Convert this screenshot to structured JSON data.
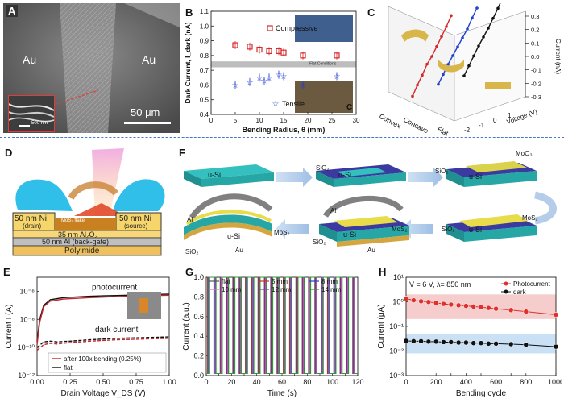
{
  "figure": {
    "colors": {
      "red": "#d62728",
      "blue": "#1f3fd0",
      "black": "#111111",
      "green": "#2ca02c",
      "purple": "#7b3fa0",
      "pink": "#f2b8b8",
      "lightblue": "#bcd8f2",
      "divider": "#4a78c8"
    },
    "panel_A": {
      "letter": "A",
      "left_label": "Au",
      "right_label": "Au",
      "scale_bar": "50 μm",
      "inset_scale": "500 nm"
    },
    "panel_B": {
      "letter": "B",
      "inset_letter": "C",
      "flat_label": "Flat Conditions",
      "legend": [
        "Compressive",
        "Tensile"
      ]
    },
    "panel_C": {
      "letter": "C",
      "labels": [
        "Convex",
        "Concave",
        "Flat"
      ]
    },
    "panel_D": {
      "letter": "D",
      "layers": [
        "50 nm Ni",
        "(drain)",
        "50 nm Ni",
        "(source)",
        "35 nm Al₂O₃",
        "50 nm Al (back-gate)",
        "Polyimide"
      ],
      "channel": "MoS₂ flake"
    },
    "panel_E": {
      "letter": "E",
      "curve_photo": "photocurrent",
      "curve_dark": "dark current"
    },
    "panel_F": {
      "letter": "F",
      "labels": {
        "usi": "u-Si",
        "sio2": "SiO₂",
        "moo3": "MoO₃",
        "mos2": "MoS₂",
        "al": "Al",
        "au": "Au"
      }
    },
    "panel_G": {
      "letter": "G"
    },
    "panel_H": {
      "letter": "H",
      "condition": "V = 6 V, λ= 850 nm",
      "legend": [
        "Photocurrent",
        "dark"
      ]
    }
  },
  "chart_data": [
    {
      "id": "B",
      "type": "scatter",
      "xlabel": "Bending Radius, θ (mm)",
      "ylabel": "Dark Current, I_dark (nA)",
      "xlim": [
        0,
        30
      ],
      "ylim": [
        0.4,
        1.1
      ],
      "xticks": [
        0,
        5,
        10,
        15,
        20,
        25,
        30
      ],
      "yticks": [
        0.4,
        0.5,
        0.6,
        0.7,
        0.8,
        0.9,
        1.0,
        1.1
      ],
      "flat_band": [
        0.72,
        0.76
      ],
      "series": [
        {
          "name": "Compressive",
          "x": [
            5,
            8,
            10,
            12,
            14,
            15,
            19,
            26
          ],
          "y": [
            0.87,
            0.86,
            0.84,
            0.83,
            0.83,
            0.82,
            0.8,
            0.8
          ]
        },
        {
          "name": "Tensile",
          "x": [
            5,
            8,
            10,
            11,
            12,
            14,
            15,
            19,
            26
          ],
          "y": [
            0.6,
            0.62,
            0.65,
            0.63,
            0.65,
            0.67,
            0.66,
            0.6,
            0.66
          ]
        }
      ]
    },
    {
      "id": "C",
      "type": "line",
      "ylabel": "Current (nA)",
      "xlabel": "Voltage (V)",
      "zticks": [
        -0.3,
        -0.2,
        -0.1,
        0.0,
        0.1,
        0.2,
        0.3
      ],
      "xticks": [
        -2,
        -1,
        0,
        1
      ],
      "series": [
        {
          "name": "Convex",
          "x": [
            -2,
            -1.5,
            -1,
            -0.5,
            0,
            0.5,
            1,
            1.5,
            2
          ],
          "y": [
            -0.28,
            -0.2,
            -0.13,
            -0.05,
            0.0,
            0.07,
            0.14,
            0.21,
            0.29
          ]
        },
        {
          "name": "Concave",
          "x": [
            -2,
            -1.5,
            -1,
            -0.5,
            0,
            0.5,
            1,
            1.5,
            2
          ],
          "y": [
            -0.26,
            -0.19,
            -0.12,
            -0.06,
            0.0,
            0.06,
            0.12,
            0.2,
            0.27
          ]
        },
        {
          "name": "Flat",
          "x": [
            -2,
            -1.5,
            -1,
            -0.5,
            0,
            0.5,
            1,
            1.5,
            2
          ],
          "y": [
            -0.27,
            -0.2,
            -0.13,
            -0.06,
            0.0,
            0.06,
            0.13,
            0.2,
            0.28
          ]
        }
      ]
    },
    {
      "id": "E",
      "type": "line",
      "xlabel": "Drain Voltage V_DS (V)",
      "ylabel": "Current I (A)",
      "xlim": [
        0,
        1.0
      ],
      "ylog": [
        -12,
        -5
      ],
      "xticks": [
        "0.00",
        "0.25",
        "0.50",
        "0.75",
        "1.00"
      ],
      "yticks": [
        "10⁻⁶",
        "10⁻⁸",
        "10⁻¹⁰",
        "10⁻¹²"
      ],
      "legend": [
        "after 100x bending (0.25%)",
        "flat"
      ],
      "series": [
        {
          "name": "photocurrent flat",
          "x": [
            0,
            0.02,
            0.05,
            0.1,
            0.2,
            0.4,
            0.6,
            0.8,
            1.0
          ],
          "log10y": [
            -9.6,
            -8.0,
            -7.0,
            -6.6,
            -6.45,
            -6.35,
            -6.3,
            -6.25,
            -6.2
          ]
        },
        {
          "name": "photocurrent bent",
          "x": [
            0,
            0.02,
            0.05,
            0.1,
            0.2,
            0.4,
            0.6,
            0.8,
            1.0
          ],
          "log10y": [
            -9.8,
            -8.2,
            -7.1,
            -6.7,
            -6.55,
            -6.45,
            -6.38,
            -6.32,
            -6.28
          ]
        },
        {
          "name": "dark flat",
          "x": [
            0,
            0.05,
            0.1,
            0.15,
            0.25,
            0.4,
            0.6,
            0.8,
            1.0
          ],
          "log10y": [
            -10.0,
            -9.6,
            -9.55,
            -9.6,
            -9.55,
            -9.45,
            -9.35,
            -9.3,
            -9.25
          ]
        },
        {
          "name": "dark bent",
          "x": [
            0,
            0.05,
            0.1,
            0.15,
            0.25,
            0.4,
            0.6,
            0.8,
            1.0
          ],
          "log10y": [
            -10.2,
            -9.8,
            -9.7,
            -9.75,
            -9.65,
            -9.55,
            -9.45,
            -9.4,
            -9.35
          ]
        }
      ]
    },
    {
      "id": "G",
      "type": "line",
      "xlabel": "Time (s)",
      "ylabel": "Current (a.u.)",
      "xlim": [
        0,
        120
      ],
      "ylim": [
        0,
        1.0
      ],
      "xticks": [
        0,
        10,
        20,
        30,
        40,
        50,
        60,
        70,
        80,
        90,
        100,
        110,
        120
      ],
      "yticks": [
        0.0,
        0.2,
        0.4,
        0.6,
        0.8,
        1.0
      ],
      "period_s": 10,
      "series": [
        {
          "name": "flat",
          "color": "#555555"
        },
        {
          "name": "5 mm",
          "color": "#d62728"
        },
        {
          "name": "8 mm",
          "color": "#1f3fd0"
        },
        {
          "name": "10 mm",
          "color": "#e377c2"
        },
        {
          "name": "12 mm",
          "color": "#7b3fa0"
        },
        {
          "name": "14 mm",
          "color": "#2ca02c"
        }
      ]
    },
    {
      "id": "H",
      "type": "scatter",
      "xlabel": "Bending cycle",
      "ylabel": "Current (μA)",
      "xlim": [
        0,
        1000
      ],
      "ylog": [
        -3,
        1
      ],
      "xticks": [
        0,
        100,
        200,
        300,
        400,
        500,
        600,
        700,
        800,
        900,
        1000
      ],
      "yticks": [
        "10¹",
        "10⁰",
        "10⁻¹",
        "10⁻²",
        "10⁻³"
      ],
      "series": [
        {
          "name": "Photocurrent",
          "x": [
            0,
            50,
            100,
            150,
            200,
            250,
            300,
            350,
            400,
            450,
            500,
            550,
            600,
            700,
            800,
            1000
          ],
          "y": [
            1.35,
            1.15,
            1.05,
            0.98,
            0.9,
            0.82,
            0.77,
            0.72,
            0.68,
            0.64,
            0.6,
            0.56,
            0.52,
            0.46,
            0.4,
            0.3
          ]
        },
        {
          "name": "dark",
          "x": [
            0,
            50,
            100,
            150,
            200,
            250,
            300,
            350,
            400,
            450,
            500,
            550,
            600,
            700,
            800,
            1000
          ],
          "y": [
            0.026,
            0.025,
            0.025,
            0.024,
            0.024,
            0.023,
            0.023,
            0.022,
            0.022,
            0.021,
            0.021,
            0.02,
            0.02,
            0.019,
            0.018,
            0.015
          ]
        }
      ]
    }
  ]
}
